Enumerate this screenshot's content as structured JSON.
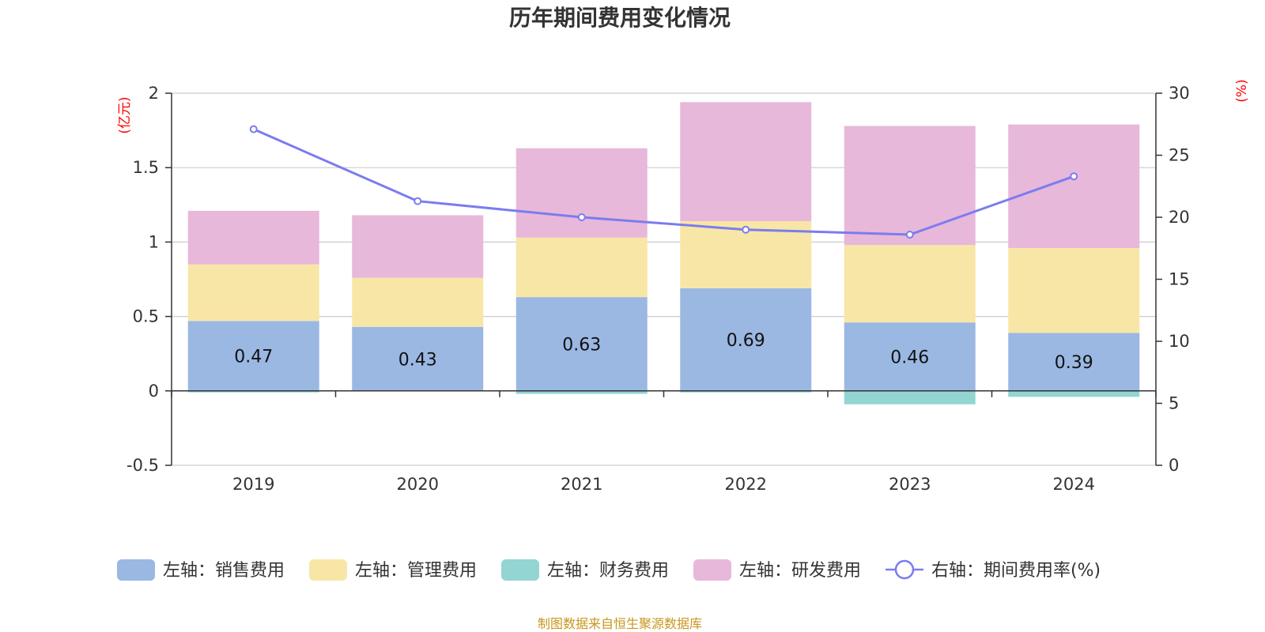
{
  "chart_data": {
    "type": "bar",
    "title": "历年期间费用变化情况",
    "categories": [
      "2019",
      "2020",
      "2021",
      "2022",
      "2023",
      "2024"
    ],
    "left_axis": {
      "unit": "(亿元)",
      "ylim": [
        -0.5,
        2
      ],
      "ticks": [
        -0.5,
        0,
        0.5,
        1,
        1.5,
        2
      ],
      "tick_labels": [
        "-0.5",
        "0",
        "0.5",
        "1",
        "1.5",
        "2"
      ]
    },
    "right_axis": {
      "unit": "(%)",
      "ylim": [
        0,
        30
      ],
      "ticks": [
        0,
        5,
        10,
        15,
        20,
        25,
        30
      ],
      "tick_labels": [
        "0",
        "5",
        "10",
        "15",
        "20",
        "25",
        "30"
      ]
    },
    "series": [
      {
        "name": "左轴：销售费用",
        "type": "bar",
        "color": "#9bb8e3",
        "values": [
          0.47,
          0.43,
          0.63,
          0.69,
          0.46,
          0.39
        ],
        "data_labels": [
          "0.47",
          "0.43",
          "0.63",
          "0.69",
          "0.46",
          "0.39"
        ]
      },
      {
        "name": "左轴：管理费用",
        "type": "bar",
        "color": "#f8e6a6",
        "values": [
          0.38,
          0.33,
          0.4,
          0.45,
          0.52,
          0.57
        ]
      },
      {
        "name": "左轴：财务费用",
        "type": "bar",
        "color": "#93d5d3",
        "values": [
          -0.01,
          0.0,
          -0.02,
          -0.01,
          -0.09,
          -0.04
        ]
      },
      {
        "name": "左轴：研发费用",
        "type": "bar",
        "color": "#e7b8da",
        "values": [
          0.36,
          0.42,
          0.6,
          0.8,
          0.8,
          0.83
        ]
      },
      {
        "name": "右轴：期间费用率(%)",
        "type": "line",
        "axis": "right",
        "color": "#7b7cef",
        "values": [
          27.1,
          21.3,
          20.0,
          19.0,
          18.6,
          23.3
        ]
      }
    ],
    "legend_position": "bottom",
    "grid": true
  },
  "source": "制图数据来自恒生聚源数据库"
}
